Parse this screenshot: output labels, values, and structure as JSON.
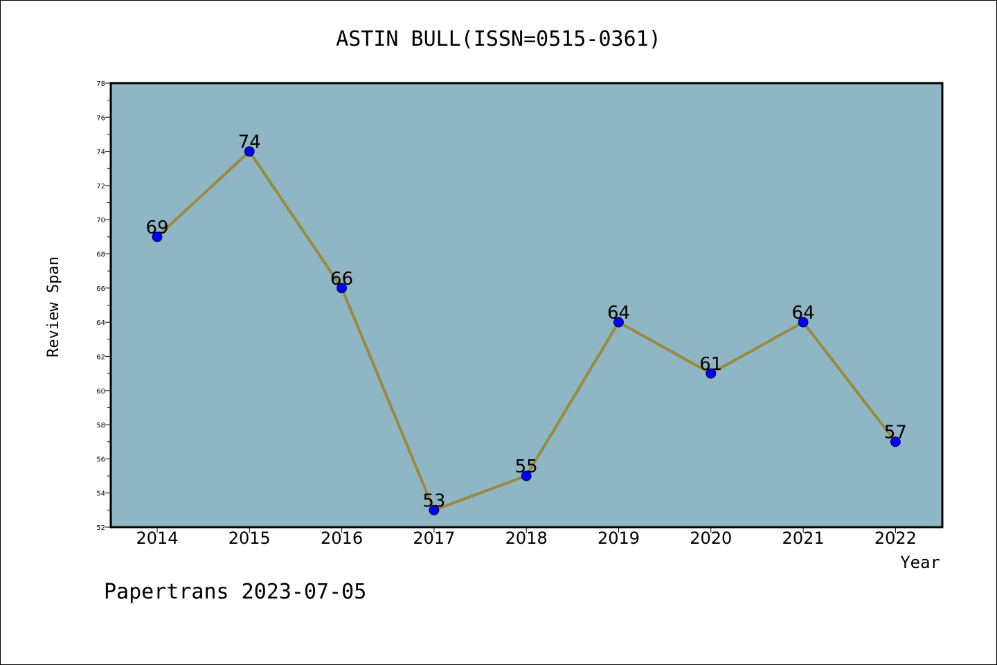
{
  "chart_data": {
    "type": "line",
    "title": "ASTIN BULL(ISSN=0515-0361)",
    "xlabel": "Year",
    "ylabel": "Review Span",
    "x": [
      "2014",
      "2015",
      "2016",
      "2017",
      "2018",
      "2019",
      "2020",
      "2021",
      "2022"
    ],
    "values": [
      69,
      74,
      66,
      53,
      55,
      64,
      61,
      64,
      57
    ],
    "ylim": [
      52,
      78
    ],
    "yticks": [
      "52",
      "54",
      "56",
      "58",
      "60",
      "62",
      "64",
      "66",
      "68",
      "70",
      "72",
      "74",
      "76",
      "78"
    ],
    "grid": false,
    "colors": {
      "plot_background": "#8fb6c4",
      "line": "#9a8a3c",
      "marker": "#0000ff"
    }
  },
  "footer": "Papertrans 2023-07-05"
}
